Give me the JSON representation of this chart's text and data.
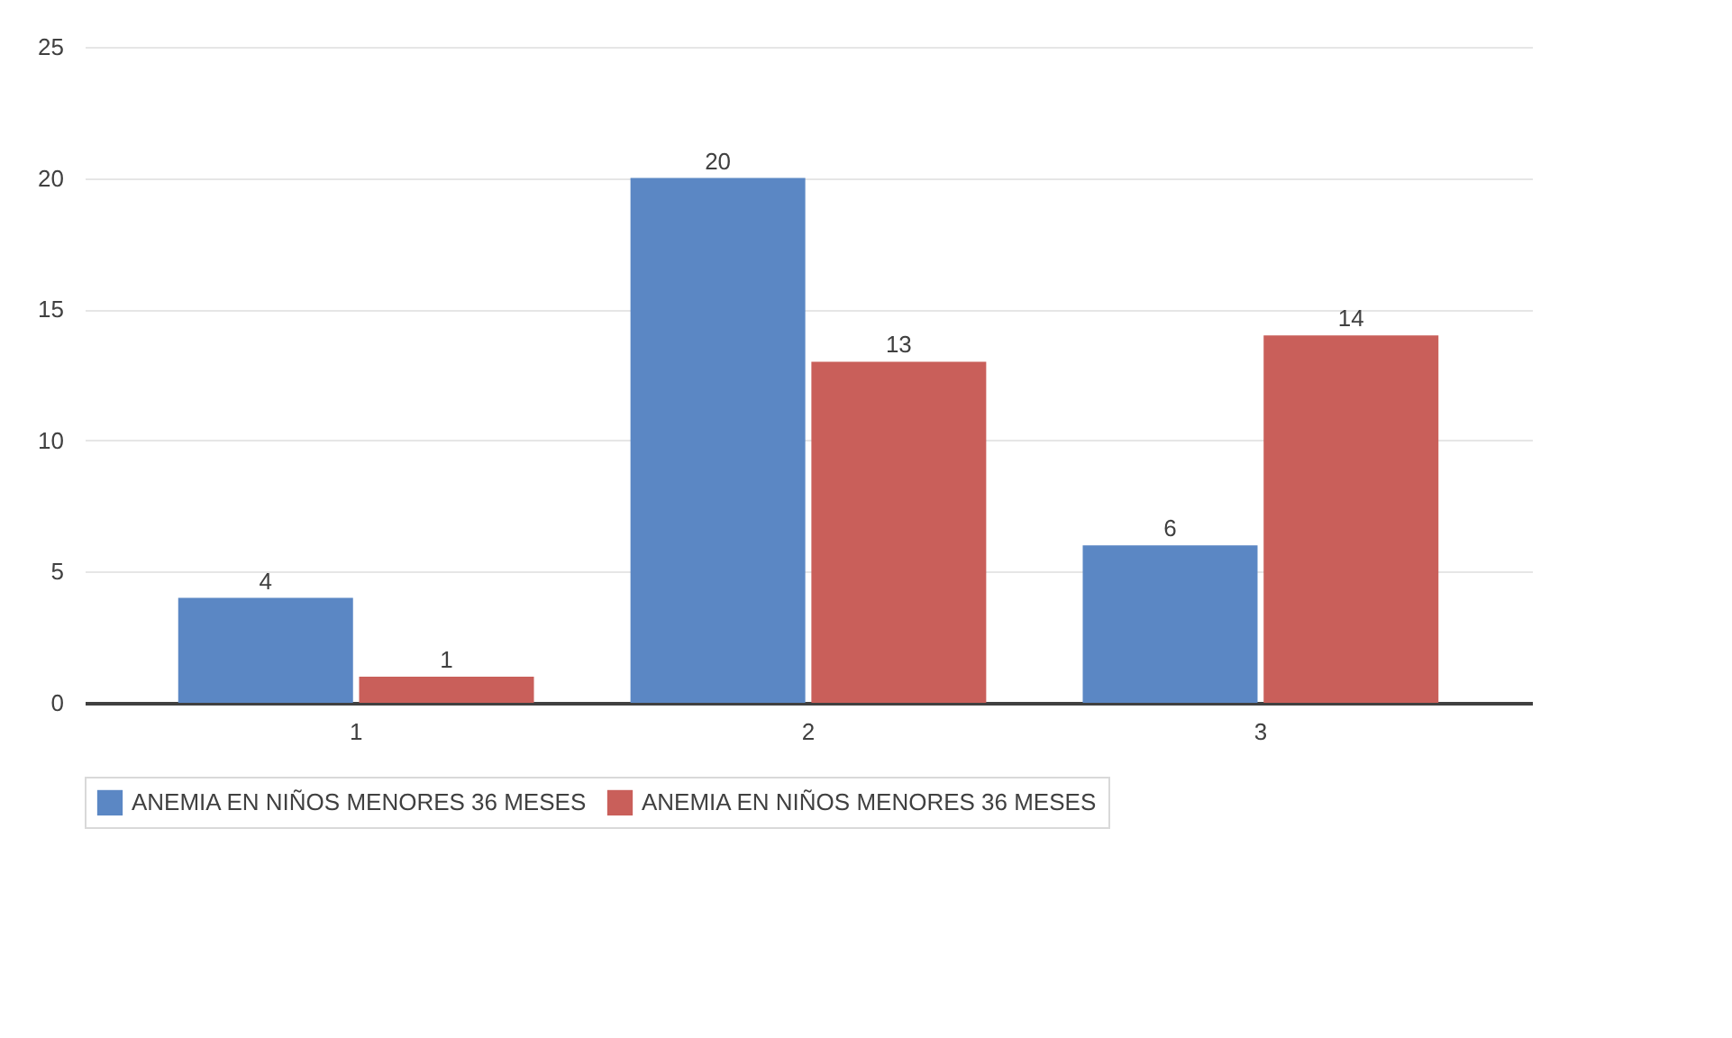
{
  "chart_data": {
    "type": "bar",
    "categories": [
      "1",
      "2",
      "3"
    ],
    "series": [
      {
        "name": "ANEMIA EN NIÑOS MENORES 36 MESES",
        "color": "#5b87c4",
        "values": [
          4,
          20,
          6
        ]
      },
      {
        "name": "ANEMIA EN NIÑOS MENORES 36 MESES",
        "color": "#c95f5a",
        "values": [
          1,
          13,
          14
        ]
      }
    ],
    "ylim": [
      0,
      25
    ],
    "yticks": [
      0,
      5,
      10,
      15,
      20,
      25
    ],
    "grid": "y",
    "legend": "bottom",
    "data_labels": true
  }
}
